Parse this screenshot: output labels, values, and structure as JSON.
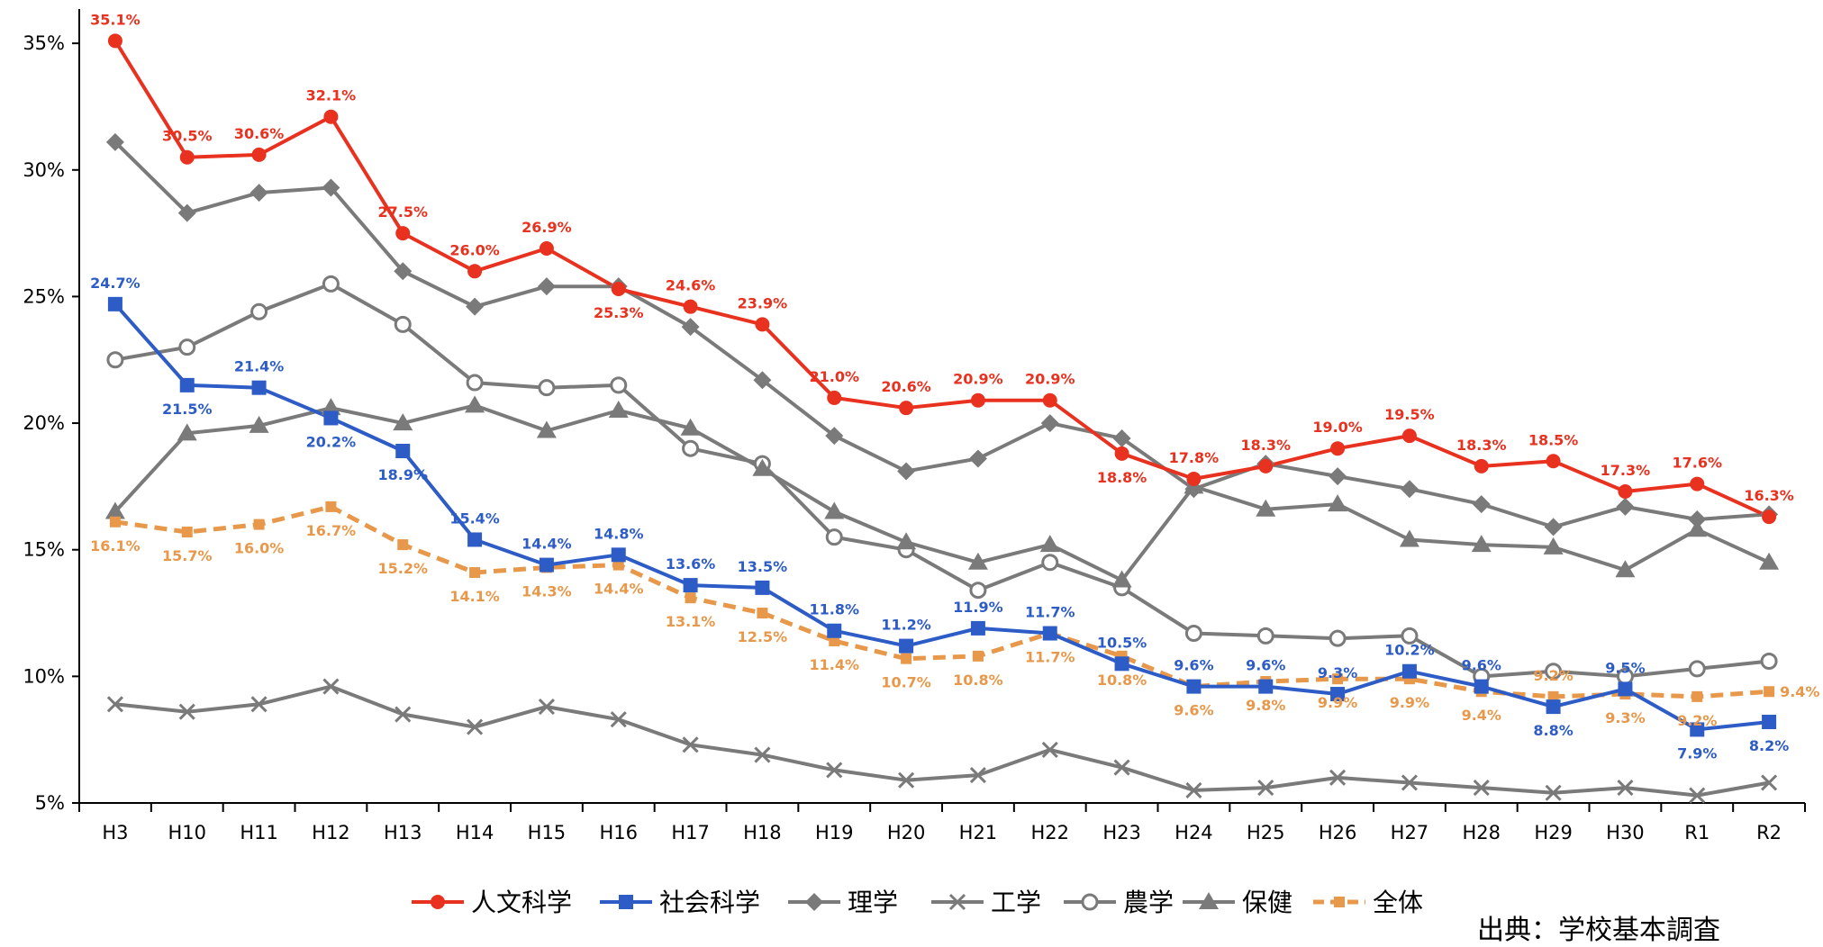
{
  "chart_data": {
    "type": "line",
    "title": "",
    "xlabel": "",
    "ylabel": "",
    "ylim": [
      5,
      36
    ],
    "y_ticks": [
      "5%",
      "10%",
      "15%",
      "20%",
      "25%",
      "30%",
      "35%"
    ],
    "y_tick_values": [
      5,
      10,
      15,
      20,
      25,
      30,
      35
    ],
    "grid": false,
    "legend_position": "bottom",
    "categories": [
      "H3",
      "H10",
      "H11",
      "H12",
      "H13",
      "H14",
      "H15",
      "H16",
      "H17",
      "H18",
      "H19",
      "H20",
      "H21",
      "H22",
      "H23",
      "H24",
      "H25",
      "H26",
      "H27",
      "H28",
      "H29",
      "H30",
      "R1",
      "R2"
    ],
    "series": [
      {
        "name": "人文科学",
        "color": "#e8311f",
        "marker": "circle-filled",
        "dash": "solid",
        "labeled": true,
        "values": [
          35.1,
          30.5,
          30.6,
          32.1,
          27.5,
          26.0,
          26.9,
          25.3,
          24.6,
          23.9,
          21.0,
          20.6,
          20.9,
          20.9,
          18.8,
          17.8,
          18.3,
          19.0,
          19.5,
          18.3,
          18.5,
          17.3,
          17.6,
          16.3
        ]
      },
      {
        "name": "社会科学",
        "color": "#2d5cc6",
        "marker": "square",
        "dash": "solid",
        "labeled": true,
        "values": [
          24.7,
          21.5,
          21.4,
          20.2,
          18.9,
          15.4,
          14.4,
          14.8,
          13.6,
          13.5,
          11.8,
          11.2,
          11.9,
          11.7,
          10.5,
          9.6,
          9.6,
          9.3,
          10.2,
          9.6,
          8.8,
          9.5,
          7.9,
          8.2
        ]
      },
      {
        "name": "理学",
        "color": "#7a7a7a",
        "marker": "diamond",
        "dash": "solid",
        "labeled": false,
        "values": [
          31.1,
          28.3,
          29.1,
          29.3,
          26.0,
          24.6,
          25.4,
          25.4,
          23.8,
          21.7,
          19.5,
          18.1,
          18.6,
          20.0,
          19.4,
          17.4,
          18.4,
          17.9,
          17.4,
          16.8,
          15.9,
          16.7,
          16.2,
          16.4
        ]
      },
      {
        "name": "工学",
        "color": "#7a7a7a",
        "marker": "x",
        "dash": "solid",
        "labeled": false,
        "values": [
          8.9,
          8.6,
          8.9,
          9.6,
          8.5,
          8.0,
          8.8,
          8.3,
          7.3,
          6.9,
          6.3,
          5.9,
          6.1,
          7.1,
          6.4,
          5.5,
          5.6,
          6.0,
          5.8,
          5.6,
          5.4,
          5.6,
          5.3,
          5.8
        ]
      },
      {
        "name": "農学",
        "color": "#7a7a7a",
        "marker": "circle-open",
        "dash": "solid",
        "labeled": false,
        "values": [
          22.5,
          23.0,
          24.4,
          25.5,
          23.9,
          21.6,
          21.4,
          21.5,
          19.0,
          18.4,
          15.5,
          15.0,
          13.4,
          14.5,
          13.5,
          11.7,
          11.6,
          11.5,
          11.6,
          10.0,
          10.2,
          10.0,
          10.3,
          10.6
        ]
      },
      {
        "name": "保健",
        "color": "#7a7a7a",
        "marker": "triangle",
        "dash": "solid",
        "labeled": false,
        "values": [
          16.5,
          19.6,
          19.9,
          20.6,
          20.0,
          20.7,
          19.7,
          20.5,
          19.8,
          18.2,
          16.5,
          15.3,
          14.5,
          15.2,
          13.8,
          17.5,
          16.6,
          16.8,
          15.4,
          15.2,
          15.1,
          14.2,
          15.8,
          14.5
        ]
      },
      {
        "name": "全体",
        "color": "#e8984a",
        "marker": "square-small",
        "dash": "dashed",
        "labeled": true,
        "values": [
          16.1,
          15.7,
          16.0,
          16.7,
          15.2,
          14.1,
          14.3,
          14.4,
          13.1,
          12.5,
          11.4,
          10.7,
          10.8,
          11.7,
          10.8,
          9.6,
          9.8,
          9.9,
          9.9,
          9.4,
          9.2,
          9.3,
          9.2,
          9.4
        ]
      }
    ],
    "data_labels": {
      "人文科学": [
        "35.1%",
        "30.5%",
        "30.6%",
        "32.1%",
        "27.5%",
        "26.0%",
        "26.9%",
        "25.3%",
        "24.6%",
        "23.9%",
        "21.0%",
        "20.6%",
        "20.9%",
        "20.9%",
        "18.8%",
        "17.8%",
        "18.3%",
        "19.0%",
        "19.5%",
        "18.3%",
        "18.5%",
        "17.3%",
        "17.6%",
        "16.3%"
      ],
      "社会科学": [
        "24.7%",
        "21.5%",
        "21.4%",
        "20.2%",
        "18.9%",
        "15.4%",
        "14.4%",
        "14.8%",
        "13.6%",
        "13.5%",
        "11.8%",
        "11.2%",
        "11.9%",
        "11.7%",
        "10.5%",
        "9.6%",
        "9.6%",
        "9.3%",
        "10.2%",
        "9.6%",
        "8.8%",
        "9.5%",
        "7.9%",
        "8.2%"
      ],
      "全体": [
        "16.1%",
        "15.7%",
        "16.0%",
        "16.7%",
        "15.2%",
        "14.1%",
        "14.3%",
        "14.4%",
        "13.1%",
        "12.5%",
        "11.4%",
        "10.7%",
        "10.8%",
        "11.7%",
        "10.8%",
        "9.6%",
        "9.8%",
        "9.9%",
        "9.9%",
        "9.4%",
        "9.2%",
        "9.3%",
        "9.2%",
        "9.4%"
      ]
    },
    "label_side": {
      "人文科学": [
        "a",
        "a",
        "a",
        "a",
        "a",
        "a",
        "a",
        "b",
        "a",
        "a",
        "a",
        "a",
        "a",
        "a",
        "b",
        "a",
        "a",
        "a",
        "a",
        "a",
        "a",
        "a",
        "a",
        "a"
      ],
      "社会科学": [
        "a",
        "b",
        "a",
        "b",
        "b",
        "a",
        "a",
        "a",
        "a",
        "a",
        "a",
        "a",
        "a",
        "a",
        "a",
        "a",
        "a",
        "a",
        "a",
        "a",
        "b",
        "a",
        "b",
        "b"
      ],
      "全体": [
        "b",
        "b",
        "b",
        "b",
        "b",
        "b",
        "b",
        "b",
        "b",
        "b",
        "b",
        "b",
        "b",
        "b",
        "b",
        "b",
        "b",
        "b",
        "b",
        "b",
        "a",
        "b",
        "b",
        "r"
      ]
    }
  },
  "source_note": "出典：学校基本調査"
}
